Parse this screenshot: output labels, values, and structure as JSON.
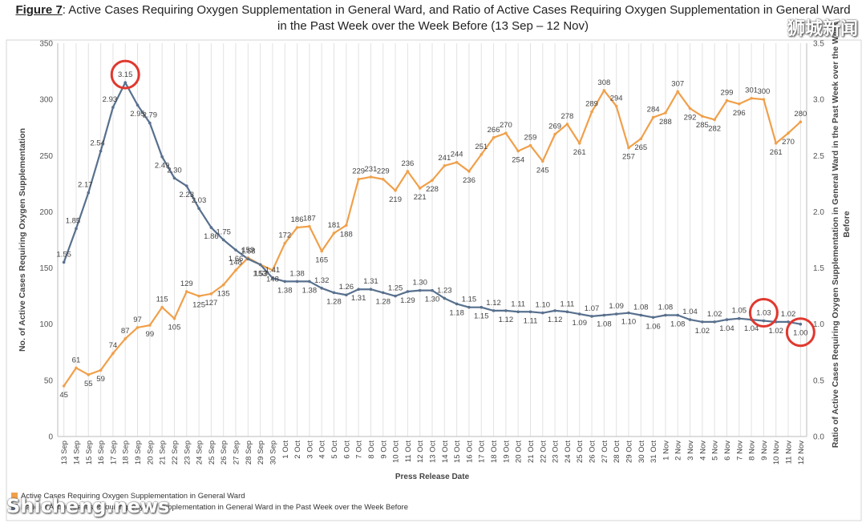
{
  "title": {
    "label": "Figure 7",
    "line1": ": Active Cases Requiring Oxygen Supplementation in General Ward, and Ratio of Active Cases Requiring Oxygen Supplementation in General Ward",
    "line2": "in the Past Week over the Week Before (13 Sep – 12 Nov)"
  },
  "watermarks": {
    "top": "狮城新闻",
    "bottom": "Shicheng.news"
  },
  "colors": {
    "cases": "#F0A04B",
    "ratio": "#58708E",
    "highlight": "#E0382F",
    "grid": "#E2E2E2"
  },
  "chart_data": {
    "type": "line",
    "xlabel": "Press Release Date",
    "ylabel_left": "No. of Active Cases Requiring Oxygen Supplementation",
    "ylabel_right": "Ratio of Active Cases Requiring Oxygen Supplementation in General Ward in the Past Week over the Week Before",
    "ylim_left": [
      0,
      350
    ],
    "ylim_right": [
      0,
      3.5
    ],
    "yticks_left": [
      "0",
      "50",
      "100",
      "150",
      "200",
      "250",
      "300",
      "350"
    ],
    "yticks_right": [
      "0.0",
      "0.5",
      "1.0",
      "1.5",
      "2.0",
      "2.5",
      "3.0",
      "3.5"
    ],
    "grid": "vertical",
    "legend_position": "bottom-left",
    "categories": [
      "13 Sep",
      "14 Sep",
      "15 Sep",
      "16 Sep",
      "17 Sep",
      "18 Sep",
      "19 Sep",
      "20 Sep",
      "21 Sep",
      "22 Sep",
      "23 Sep",
      "24 Sep",
      "25 Sep",
      "26 Sep",
      "27 Sep",
      "28 Sep",
      "29 Sep",
      "30 Sep",
      "1 Oct",
      "2 Oct",
      "3 Oct",
      "4 Oct",
      "5 Oct",
      "6 Oct",
      "7 Oct",
      "8 Oct",
      "9 Oct",
      "10 Oct",
      "11 Oct",
      "12 Oct",
      "13 Oct",
      "14 Oct",
      "15 Oct",
      "16 Oct",
      "17 Oct",
      "18 Oct",
      "19 Oct",
      "20 Oct",
      "21 Oct",
      "22 Oct",
      "23 Oct",
      "24 Oct",
      "25 Oct",
      "26 Oct",
      "27 Oct",
      "28 Oct",
      "29 Oct",
      "30 Oct",
      "31 Oct",
      "1 Nov",
      "2 Nov",
      "3 Nov",
      "4 Nov",
      "5 Nov",
      "6 Nov",
      "7 Nov",
      "8 Nov",
      "9 Nov",
      "10 Nov",
      "11 Nov",
      "12 Nov"
    ],
    "series": [
      {
        "name": "Active Cases Requiring Oxygen Supplementation in General Ward",
        "axis": "left",
        "values": [
          45,
          61,
          55,
          59,
          74,
          87,
          97,
          99,
          115,
          105,
          129,
          125,
          127,
          135,
          148,
          159,
          153,
          148,
          172,
          186,
          187,
          165,
          181,
          188,
          229,
          231,
          229,
          219,
          236,
          221,
          228,
          241,
          244,
          236,
          251,
          266,
          270,
          254,
          259,
          245,
          269,
          278,
          261,
          289,
          308,
          294,
          257,
          265,
          284,
          288,
          307,
          292,
          285,
          282,
          299,
          296,
          301,
          300,
          261,
          270,
          280
        ],
        "labels": [
          "45",
          "61",
          "55",
          "59",
          "74",
          "87",
          "97",
          "99",
          "115",
          "105",
          "129",
          "125",
          "127",
          "135",
          "148",
          "159",
          "153",
          "148",
          "172",
          "186",
          "187",
          "165",
          "181",
          "188",
          "229",
          "231",
          "229",
          "219",
          "236",
          "221",
          "228",
          "241",
          "244",
          "236",
          "251",
          "266",
          "270",
          "254",
          "259",
          "245",
          "269",
          "278",
          "261",
          "289",
          "308",
          "294",
          "257",
          "265",
          "284",
          "288",
          "307",
          "292",
          "285",
          "282",
          "299",
          "296",
          "301",
          "300",
          "261",
          "270",
          "280"
        ]
      },
      {
        "name": "Ratio of Active Cases Requiring Oxygen Supplementation in General Ward in the Past Week over the Week Before",
        "axis": "right",
        "values": [
          1.55,
          1.85,
          2.17,
          2.54,
          2.93,
          3.15,
          2.95,
          2.79,
          2.49,
          2.3,
          2.23,
          2.03,
          1.86,
          1.75,
          1.66,
          1.58,
          1.53,
          1.41,
          1.38,
          1.38,
          1.38,
          1.32,
          1.28,
          1.26,
          1.31,
          1.31,
          1.28,
          1.25,
          1.29,
          1.3,
          1.3,
          1.23,
          1.18,
          1.15,
          1.15,
          1.12,
          1.12,
          1.11,
          1.11,
          1.1,
          1.12,
          1.11,
          1.09,
          1.07,
          1.08,
          1.09,
          1.1,
          1.08,
          1.06,
          1.08,
          1.08,
          1.04,
          1.02,
          1.02,
          1.04,
          1.05,
          1.04,
          1.03,
          1.02,
          1.02,
          1.0
        ],
        "labels": [
          "1.55",
          "1.85",
          "2.17",
          "2.54",
          "2.93",
          "3.15",
          "2.95",
          "2.79",
          "2.49",
          "2.30",
          "2.23",
          "2.03",
          "1.86",
          "1.75",
          "1.66",
          "1.58",
          "1.53",
          "1.41",
          "1.38",
          "1.38",
          "1.38",
          "1.32",
          "1.28",
          "1.26",
          "1.31",
          "1.31",
          "1.28",
          "1.25",
          "1.29",
          "1.30",
          "1.30",
          "1.23",
          "1.18",
          "1.15",
          "1.15",
          "1.12",
          "1.12",
          "1.11",
          "1.11",
          "1.10",
          "1.12",
          "1.11",
          "1.09",
          "1.07",
          "1.08",
          "1.09",
          "1.10",
          "1.08",
          "1.06",
          "1.08",
          "1.08",
          "1.04",
          "1.02",
          "1.02",
          "1.04",
          "1.05",
          "1.04",
          "1.03",
          "1.02",
          "1.02",
          "1.00"
        ]
      }
    ],
    "highlighted_points": [
      "18 Sep",
      "9 Nov",
      "12 Nov"
    ]
  }
}
